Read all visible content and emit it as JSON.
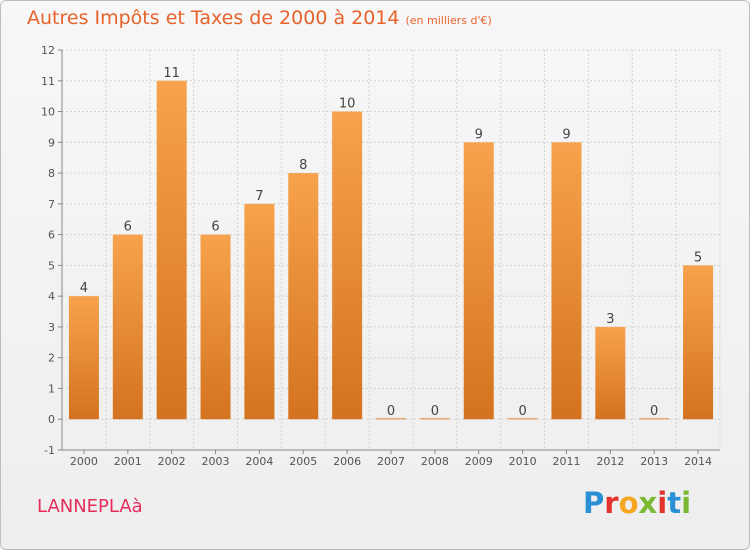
{
  "header": {
    "title": "Autres Impôts et Taxes de 2000 à 2014",
    "unit": "(en milliers d'€)"
  },
  "footer": {
    "commune": "LANNEPLAà",
    "logo_text": "Proxiti",
    "logo_colors": [
      "#2a8fd4",
      "#e2342d",
      "#f5a623",
      "#7cb833",
      "#e2342d",
      "#2a8fd4",
      "#7cb833"
    ]
  },
  "colors": {
    "bar_light": "#f7a24c",
    "bar_dark": "#d4731f",
    "title": "#e8622c",
    "commune": "#e62d5a"
  },
  "chart_data": {
    "type": "bar",
    "title": "Autres Impôts et Taxes de 2000 à 2014",
    "subtitle": "(en milliers d'€)",
    "categories": [
      "2000",
      "2001",
      "2002",
      "2003",
      "2004",
      "2005",
      "2006",
      "2007",
      "2008",
      "2009",
      "2010",
      "2011",
      "2012",
      "2013",
      "2014"
    ],
    "values": [
      4,
      6,
      11,
      6,
      7,
      8,
      10,
      0,
      0,
      9,
      0,
      9,
      3,
      0,
      5
    ],
    "y_ticks": [
      "-1",
      "0",
      "1",
      "2",
      "3",
      "4",
      "5",
      "6",
      "7",
      "8",
      "9",
      "10",
      "11",
      "12"
    ],
    "ylim": [
      -1,
      12
    ],
    "grid": true,
    "data_labels": true
  }
}
